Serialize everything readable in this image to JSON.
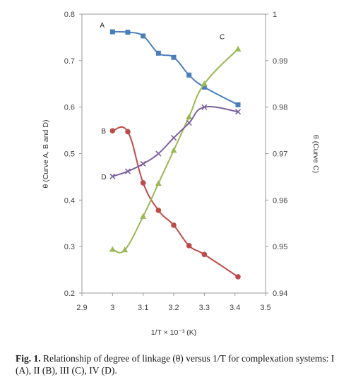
{
  "chart_data": {
    "type": "line",
    "title": "",
    "xlabel": "1/T × 10⁻³ (K)",
    "ylabel_left": "θ (Curve A, B and D)",
    "ylabel_right": "θ (Curve C)",
    "xlim": [
      2.9,
      3.5
    ],
    "ylim_left": [
      0.2,
      0.8
    ],
    "ylim_right": [
      0.94,
      1.0
    ],
    "x_ticks": [
      "2.9",
      "3",
      "3.1",
      "3.2",
      "3.3",
      "3.4",
      "3.5"
    ],
    "y_left_ticks": [
      "0.2",
      "0.3",
      "0.4",
      "0.5",
      "0.6",
      "0.7",
      "0.8"
    ],
    "y_right_ticks": [
      "0.94",
      "0.95",
      "0.96",
      "0.97",
      "0.98",
      "0.99",
      "1"
    ],
    "grid": false,
    "series": [
      {
        "name": "A",
        "axis": "left",
        "color": "#4a7ebb",
        "marker": "square",
        "points": [
          [
            3.0,
            0.762
          ],
          [
            3.05,
            0.761
          ],
          [
            3.1,
            0.753
          ],
          [
            3.15,
            0.716
          ],
          [
            3.2,
            0.707
          ],
          [
            3.25,
            0.669
          ],
          [
            3.3,
            0.643
          ],
          [
            3.41,
            0.605
          ]
        ]
      },
      {
        "name": "B",
        "axis": "left",
        "color": "#be4b48",
        "marker": "circle",
        "points": [
          [
            3.0,
            0.549
          ],
          [
            3.05,
            0.547
          ],
          [
            3.1,
            0.437
          ],
          [
            3.15,
            0.378
          ],
          [
            3.2,
            0.346
          ],
          [
            3.25,
            0.302
          ],
          [
            3.3,
            0.283
          ],
          [
            3.41,
            0.235
          ]
        ]
      },
      {
        "name": "C",
        "axis": "right",
        "color": "#98b954",
        "marker": "triangle",
        "points": [
          [
            3.0,
            0.9494
          ],
          [
            3.04,
            0.9493
          ],
          [
            3.1,
            0.9565
          ],
          [
            3.15,
            0.9636
          ],
          [
            3.2,
            0.9707
          ],
          [
            3.25,
            0.9779
          ],
          [
            3.3,
            0.985
          ],
          [
            3.41,
            0.9925
          ]
        ]
      },
      {
        "name": "D",
        "axis": "left",
        "color": "#7d60a0",
        "marker": "x",
        "points": [
          [
            3.0,
            0.451
          ],
          [
            3.05,
            0.462
          ],
          [
            3.1,
            0.478
          ],
          [
            3.15,
            0.5
          ],
          [
            3.2,
            0.534
          ],
          [
            3.25,
            0.566
          ],
          [
            3.3,
            0.6
          ],
          [
            3.41,
            0.59
          ]
        ]
      }
    ]
  },
  "caption": {
    "label": "Fig. 1.",
    "text": " Relationship of degree of linkage (θ) versus 1/T for complexation systems: I (A), II (B), III (C), IV (D)."
  }
}
